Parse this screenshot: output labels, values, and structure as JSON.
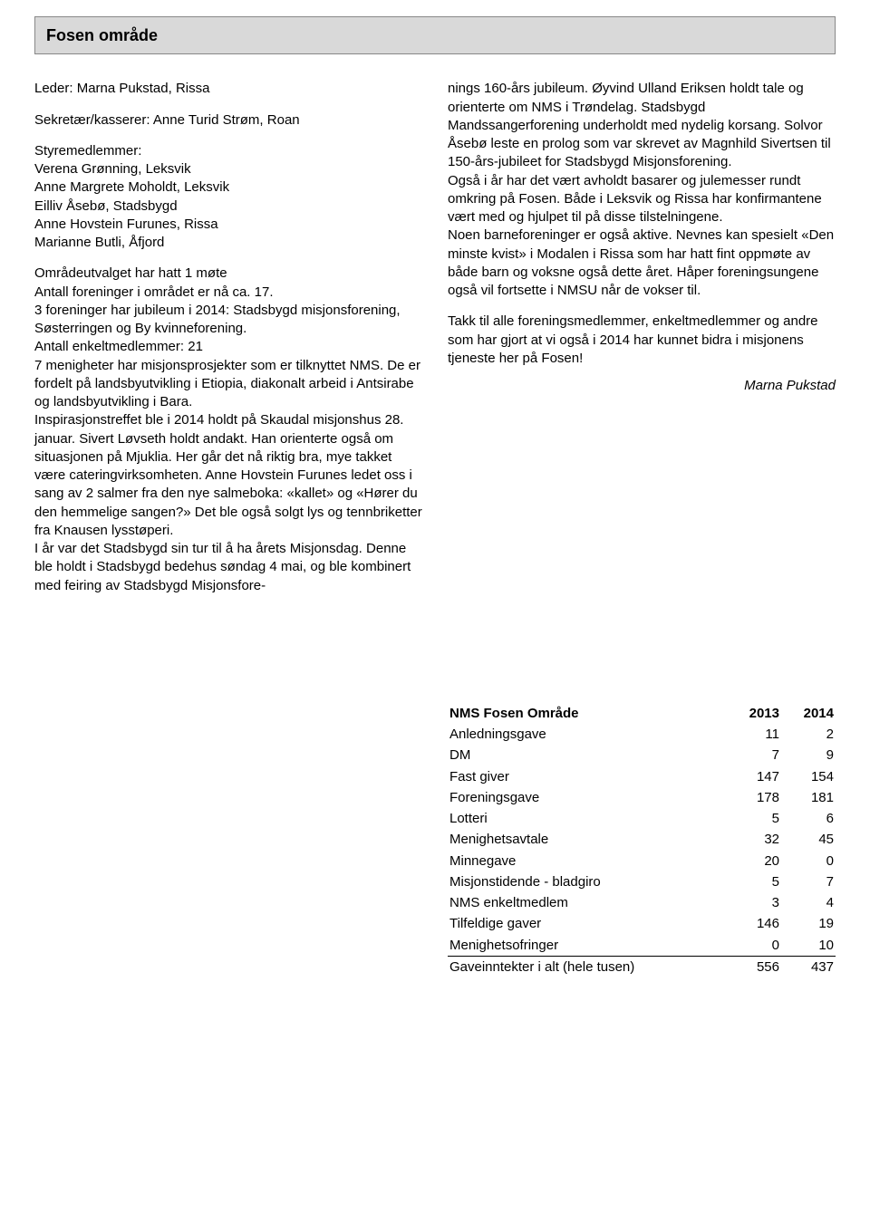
{
  "header": {
    "title": "Fosen område"
  },
  "leader": {
    "label": "Leder:",
    "name": "Marna Pukstad, Rissa"
  },
  "secretary": {
    "label": "Sekretær/kasserer:",
    "name": "Anne Turid Strøm, Roan"
  },
  "board": {
    "heading": "Styremedlemmer:",
    "members": [
      "Verena Grønning, Leksvik",
      "Anne Margrete Moholdt, Leksvik",
      "Eilliv Åsebø, Stadsbygd",
      "Anne Hovstein Furunes, Rissa",
      "Marianne Butli, Åfjord"
    ]
  },
  "left_body": "Områdeutvalget har hatt 1 møte\nAntall foreninger i området er nå ca. 17.\n3 foreninger har jubileum i 2014: Stadsbygd misjonsforening, Søsterringen og By kvinneforening.\nAntall enkeltmedlemmer: 21\n7 menigheter har misjonsprosjekter som er tilknyttet NMS. De er fordelt på landsbyutvikling i Etiopia, diakonalt arbeid i Antsirabe og landsbyutvikling i Bara.\nInspirasjonstreffet ble i 2014 holdt på Skaudal misjonshus 28. januar. Sivert Løvseth holdt andakt. Han orienterte også om situasjonen på Mjuklia. Her går det nå riktig bra, mye takket være cateringvirksomheten. Anne Hovstein Furunes ledet oss i sang av 2 salmer fra den nye salmeboka: «kallet» og «Hører du den hemmelige sangen?» Det ble også solgt lys og tennbriketter fra Knausen lysstøperi.\nI år var det Stadsbygd sin tur til å ha årets Misjonsdag. Denne ble holdt i Stadsbygd bedehus søndag 4 mai, og ble kombinert med feiring av Stadsbygd Misjonsfore-",
  "right_body_1": "nings 160-års jubileum. Øyvind Ulland Eriksen holdt tale og orienterte om NMS i Trøndelag. Stadsbygd Mandssangerforening underholdt med nydelig korsang. Solvor Åsebø leste en prolog som var skrevet av Magnhild Sivertsen til 150-års-jubileet for Stadsbygd Misjonsforening.\nOgså i år har det vært avholdt basarer og julemesser rundt omkring på Fosen. Både i Leksvik og Rissa har konfirmantene vært med og hjulpet til på disse tilstelningene.\nNoen barneforeninger er også aktive. Nevnes kan spesielt «Den minste kvist» i Modalen i Rissa som har hatt fint oppmøte av både barn og voksne også dette året. Håper foreningsungene også vil fortsette i NMSU når de vokser til.",
  "right_body_2": "Takk til alle foreningsmedlemmer, enkeltmedlemmer og andre som har gjort at vi også i 2014 har kunnet bidra i misjonens tjeneste her på Fosen!",
  "signature": "Marna Pukstad",
  "table": {
    "title": "NMS Fosen Område",
    "col1": "2013",
    "col2": "2014",
    "rows": [
      {
        "label": "Anledningsgave",
        "v1": "11",
        "v2": "2"
      },
      {
        "label": "DM",
        "v1": "7",
        "v2": "9"
      },
      {
        "label": "Fast giver",
        "v1": "147",
        "v2": "154"
      },
      {
        "label": "Foreningsgave",
        "v1": "178",
        "v2": "181"
      },
      {
        "label": "Lotteri",
        "v1": "5",
        "v2": "6"
      },
      {
        "label": "Menighetsavtale",
        "v1": "32",
        "v2": "45"
      },
      {
        "label": "Minnegave",
        "v1": "20",
        "v2": "0"
      },
      {
        "label": "Misjonstidende - bladgiro",
        "v1": "5",
        "v2": "7"
      },
      {
        "label": "NMS enkeltmedlem",
        "v1": "3",
        "v2": "4"
      },
      {
        "label": "Tilfeldige gaver",
        "v1": "146",
        "v2": "19"
      },
      {
        "label": "Menighetsofringer",
        "v1": "0",
        "v2": "10"
      }
    ],
    "total": {
      "label": "Gaveinntekter i alt (hele tusen)",
      "v1": "556",
      "v2": "437"
    }
  },
  "colors": {
    "titlebar_bg": "#d9d9d9",
    "titlebar_border": "#888888",
    "text": "#000000",
    "page_bg": "#ffffff"
  }
}
